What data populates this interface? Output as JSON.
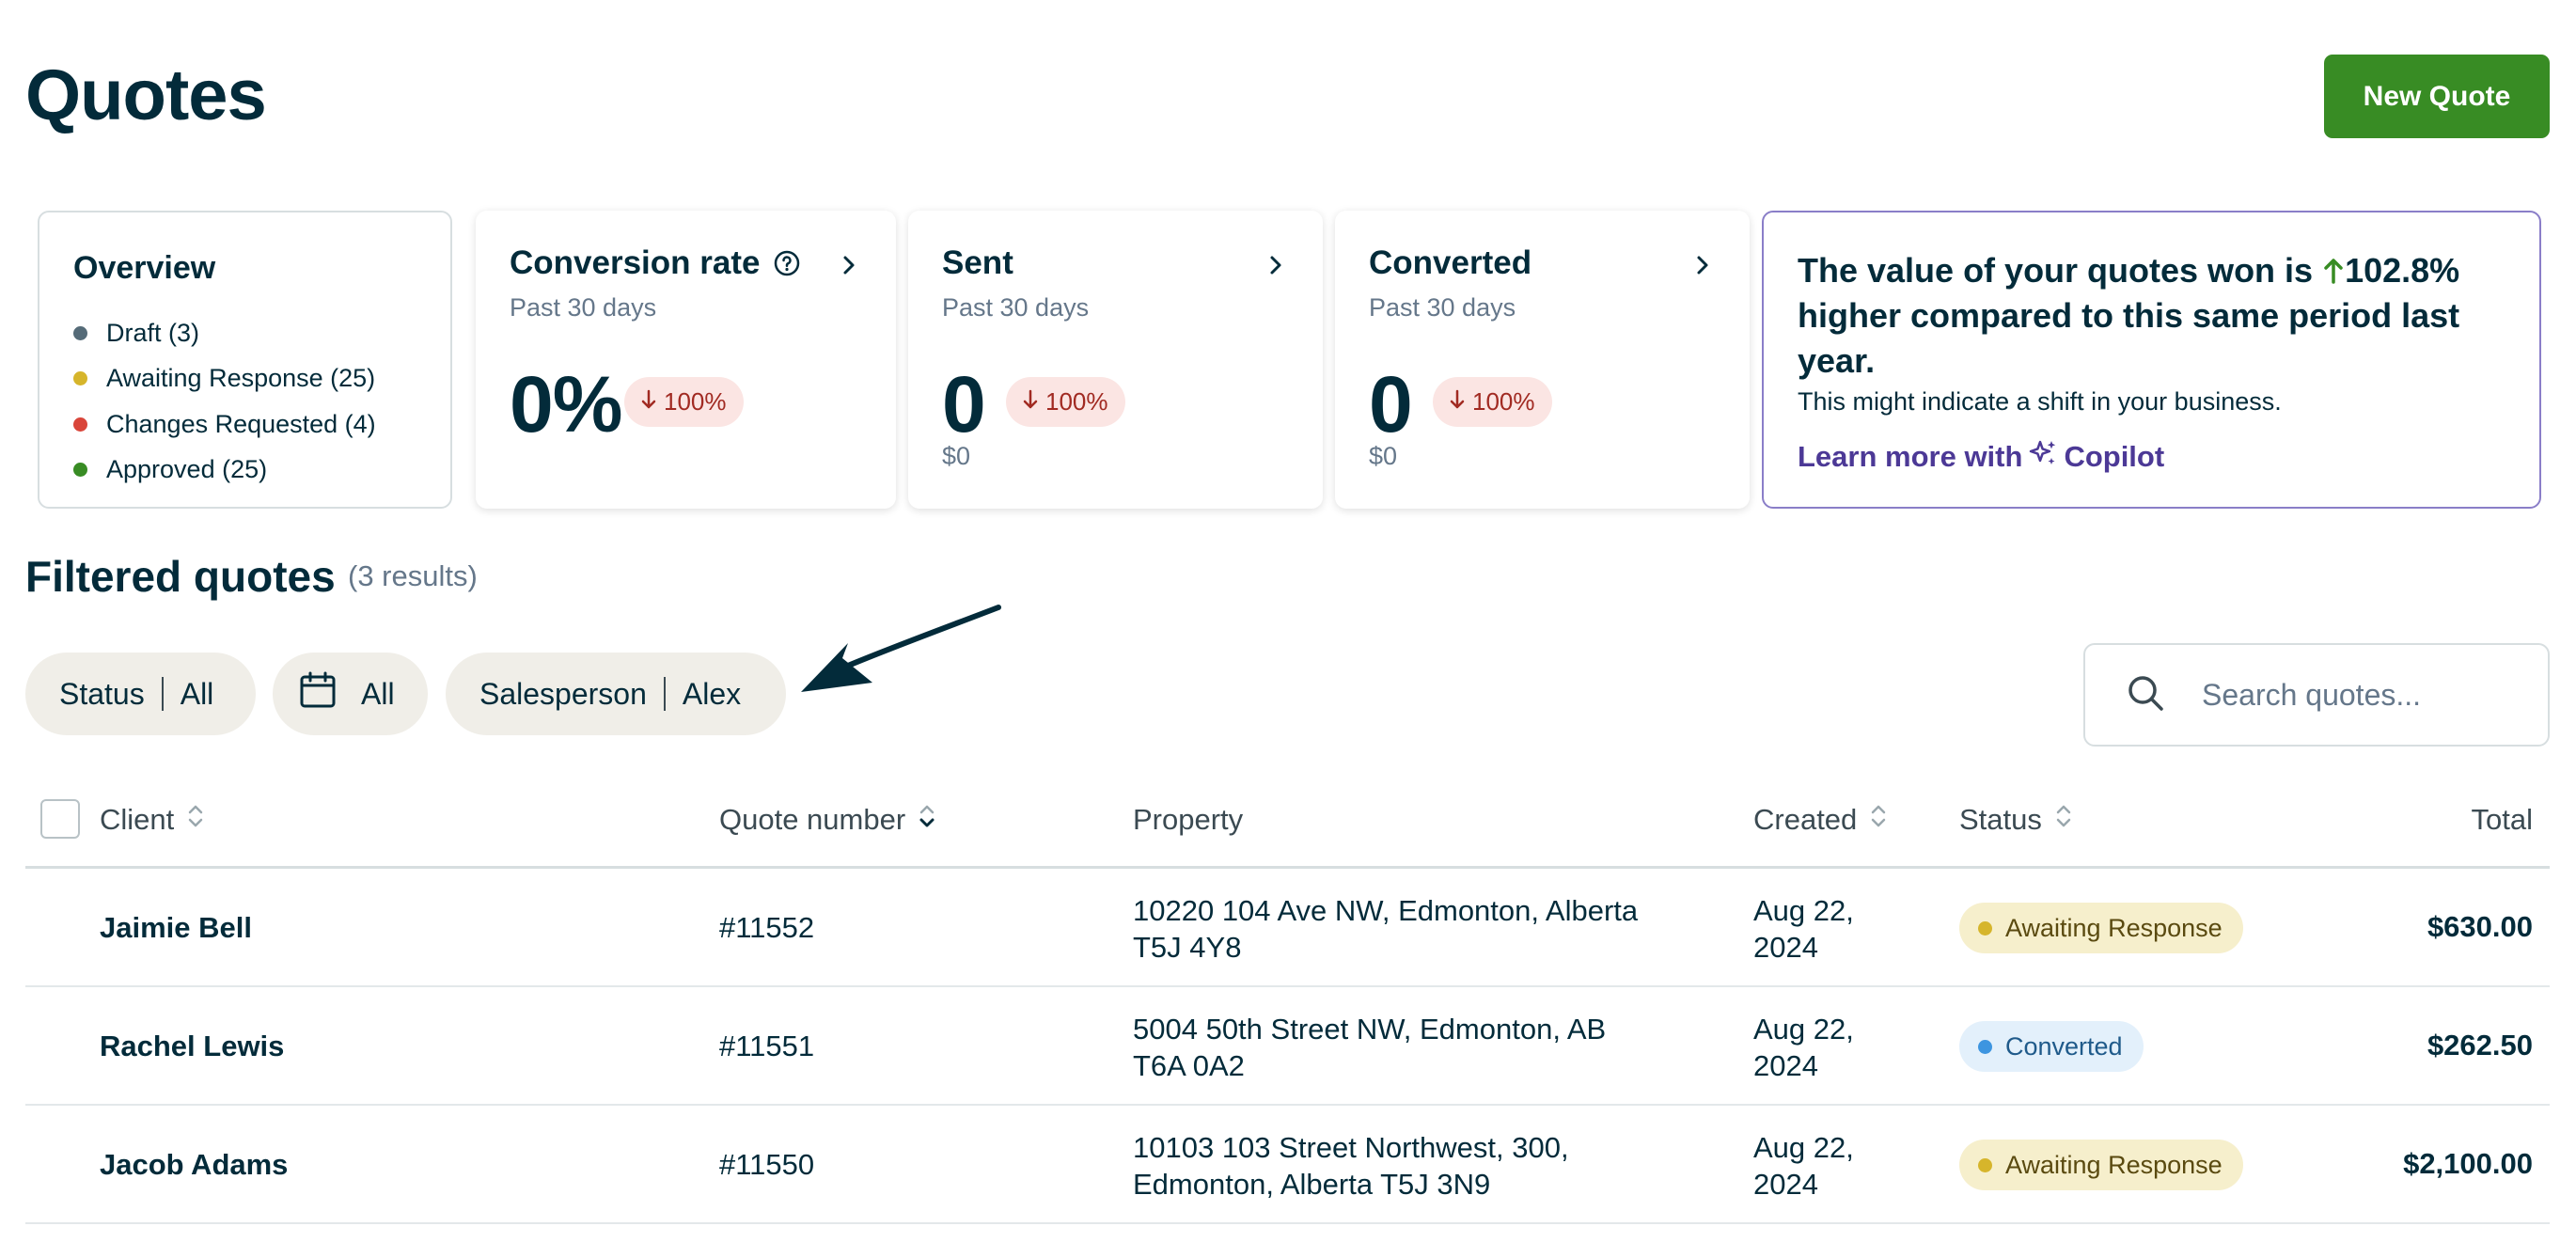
{
  "header": {
    "title": "Quotes",
    "new_quote_label": "New Quote"
  },
  "overview": {
    "title": "Overview",
    "items": [
      {
        "label": "Draft (3)",
        "color": "#556b78"
      },
      {
        "label": "Awaiting Response (25)",
        "color": "#d6b52b"
      },
      {
        "label": "Changes Requested (4)",
        "color": "#d9453a"
      },
      {
        "label": "Approved (25)",
        "color": "#388c24"
      }
    ]
  },
  "metrics": {
    "conversion": {
      "title": "Conversion rate",
      "period": "Past 30 days",
      "value": "0%",
      "delta": "100%"
    },
    "sent": {
      "title": "Sent",
      "period": "Past 30 days",
      "value": "0",
      "delta": "100%",
      "amount": "$0"
    },
    "converted": {
      "title": "Converted",
      "period": "Past 30 days",
      "value": "0",
      "delta": "100%",
      "amount": "$0"
    }
  },
  "insight": {
    "text_before": "The value of your quotes won is ",
    "percent": "102.8%",
    "text_after": " higher compared to this same period last year.",
    "subtext": "This might indicate a shift in your business.",
    "link_prefix": "Learn more with",
    "link_brand": "Copilot"
  },
  "filtered": {
    "title": "Filtered quotes",
    "count": "(3 results)"
  },
  "filters": {
    "status_label": "Status",
    "status_value": "All",
    "date_value": "All",
    "salesperson_label": "Salesperson",
    "salesperson_value": "Alex"
  },
  "search": {
    "placeholder": "Search quotes..."
  },
  "table": {
    "columns": {
      "client": "Client",
      "quote_number": "Quote number",
      "property": "Property",
      "created": "Created",
      "status": "Status",
      "total": "Total"
    },
    "rows": [
      {
        "client": "Jaimie Bell",
        "quote_number": "#11552",
        "property_line1": "10220 104 Ave NW, Edmonton, Alberta",
        "property_line2": "T5J 4Y8",
        "created_line1": "Aug 22,",
        "created_line2": "2024",
        "status": "Awaiting Response",
        "total": "$630.00"
      },
      {
        "client": "Rachel Lewis",
        "quote_number": "#11551",
        "property_line1": "5004 50th Street NW, Edmonton, AB",
        "property_line2": "T6A 0A2",
        "created_line1": "Aug 22,",
        "created_line2": "2024",
        "status": "Converted",
        "total": "$262.50"
      },
      {
        "client": "Jacob Adams",
        "quote_number": "#11550",
        "property_line1": "10103 103 Street Northwest, 300,",
        "property_line2": "Edmonton, Alberta T5J 3N9",
        "created_line1": "Aug 22,",
        "created_line2": "2024",
        "status": "Awaiting Response",
        "total": "$2,100.00"
      }
    ]
  },
  "colors": {
    "brand_green": "#388c24",
    "text_dark": "#032b3a",
    "awaiting_bg": "#f6efcc",
    "awaiting_dot": "#d6b52b",
    "converted_bg": "#e3f0fb",
    "converted_dot": "#3d95e0",
    "copilot_purple": "#4c3996"
  }
}
